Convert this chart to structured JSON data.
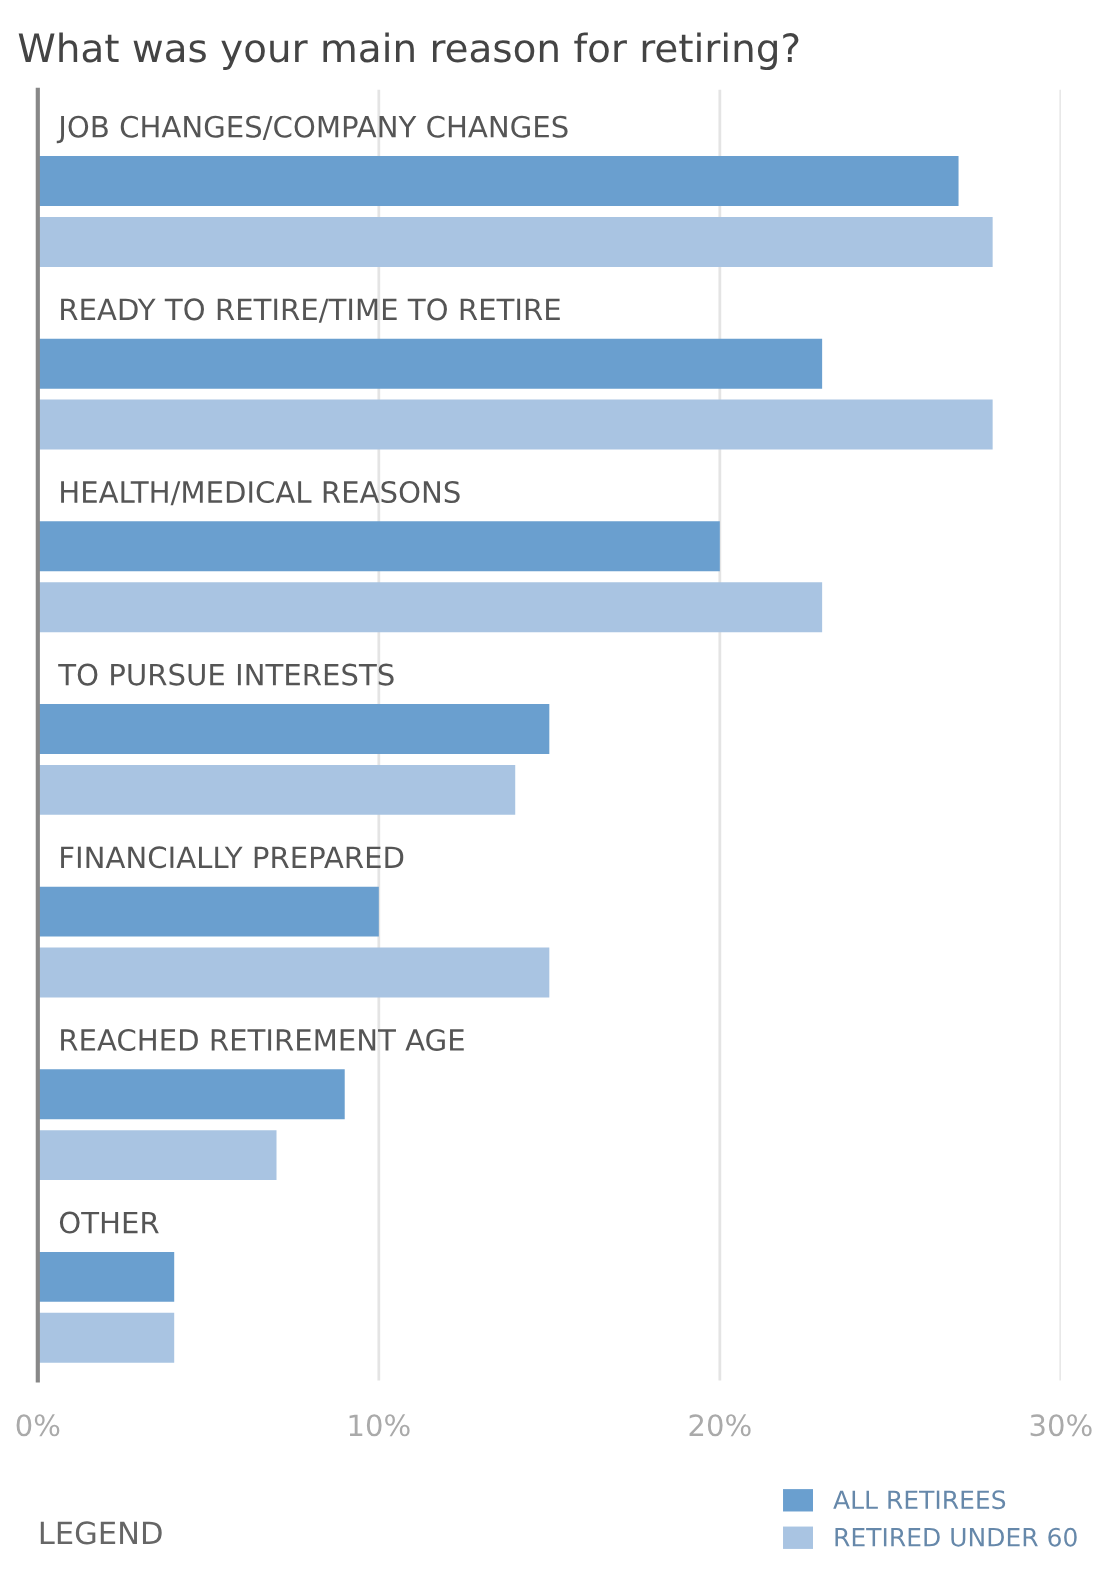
{
  "chart_data": {
    "type": "bar",
    "orientation": "horizontal",
    "title": "What was your main reason for retiring?",
    "categories": [
      "JOB CHANGES/COMPANY CHANGES",
      "READY TO RETIRE/TIME TO RETIRE",
      "HEALTH/MEDICAL REASONS",
      "TO PURSUE INTERESTS",
      "FINANCIALLY PREPARED",
      "REACHED RETIREMENT AGE",
      "OTHER"
    ],
    "series": [
      {
        "name": "ALL RETIREES",
        "color": "#6a9fcf",
        "values": [
          27,
          23,
          20,
          15,
          10,
          9,
          4
        ]
      },
      {
        "name": "RETIRED UNDER 60",
        "color": "#a9c4e2",
        "values": [
          28,
          28,
          23,
          14,
          15,
          7,
          4
        ]
      }
    ],
    "xlim": [
      0,
      30
    ],
    "xticks": [
      {
        "value": 0,
        "label": "0%"
      },
      {
        "value": 10,
        "label": "10%"
      },
      {
        "value": 20,
        "label": "20%"
      },
      {
        "value": 30,
        "label": "30%"
      }
    ],
    "grid": "x",
    "legend": "bottom right",
    "legend_title": "LEGEND",
    "tick_labels": "x"
  }
}
